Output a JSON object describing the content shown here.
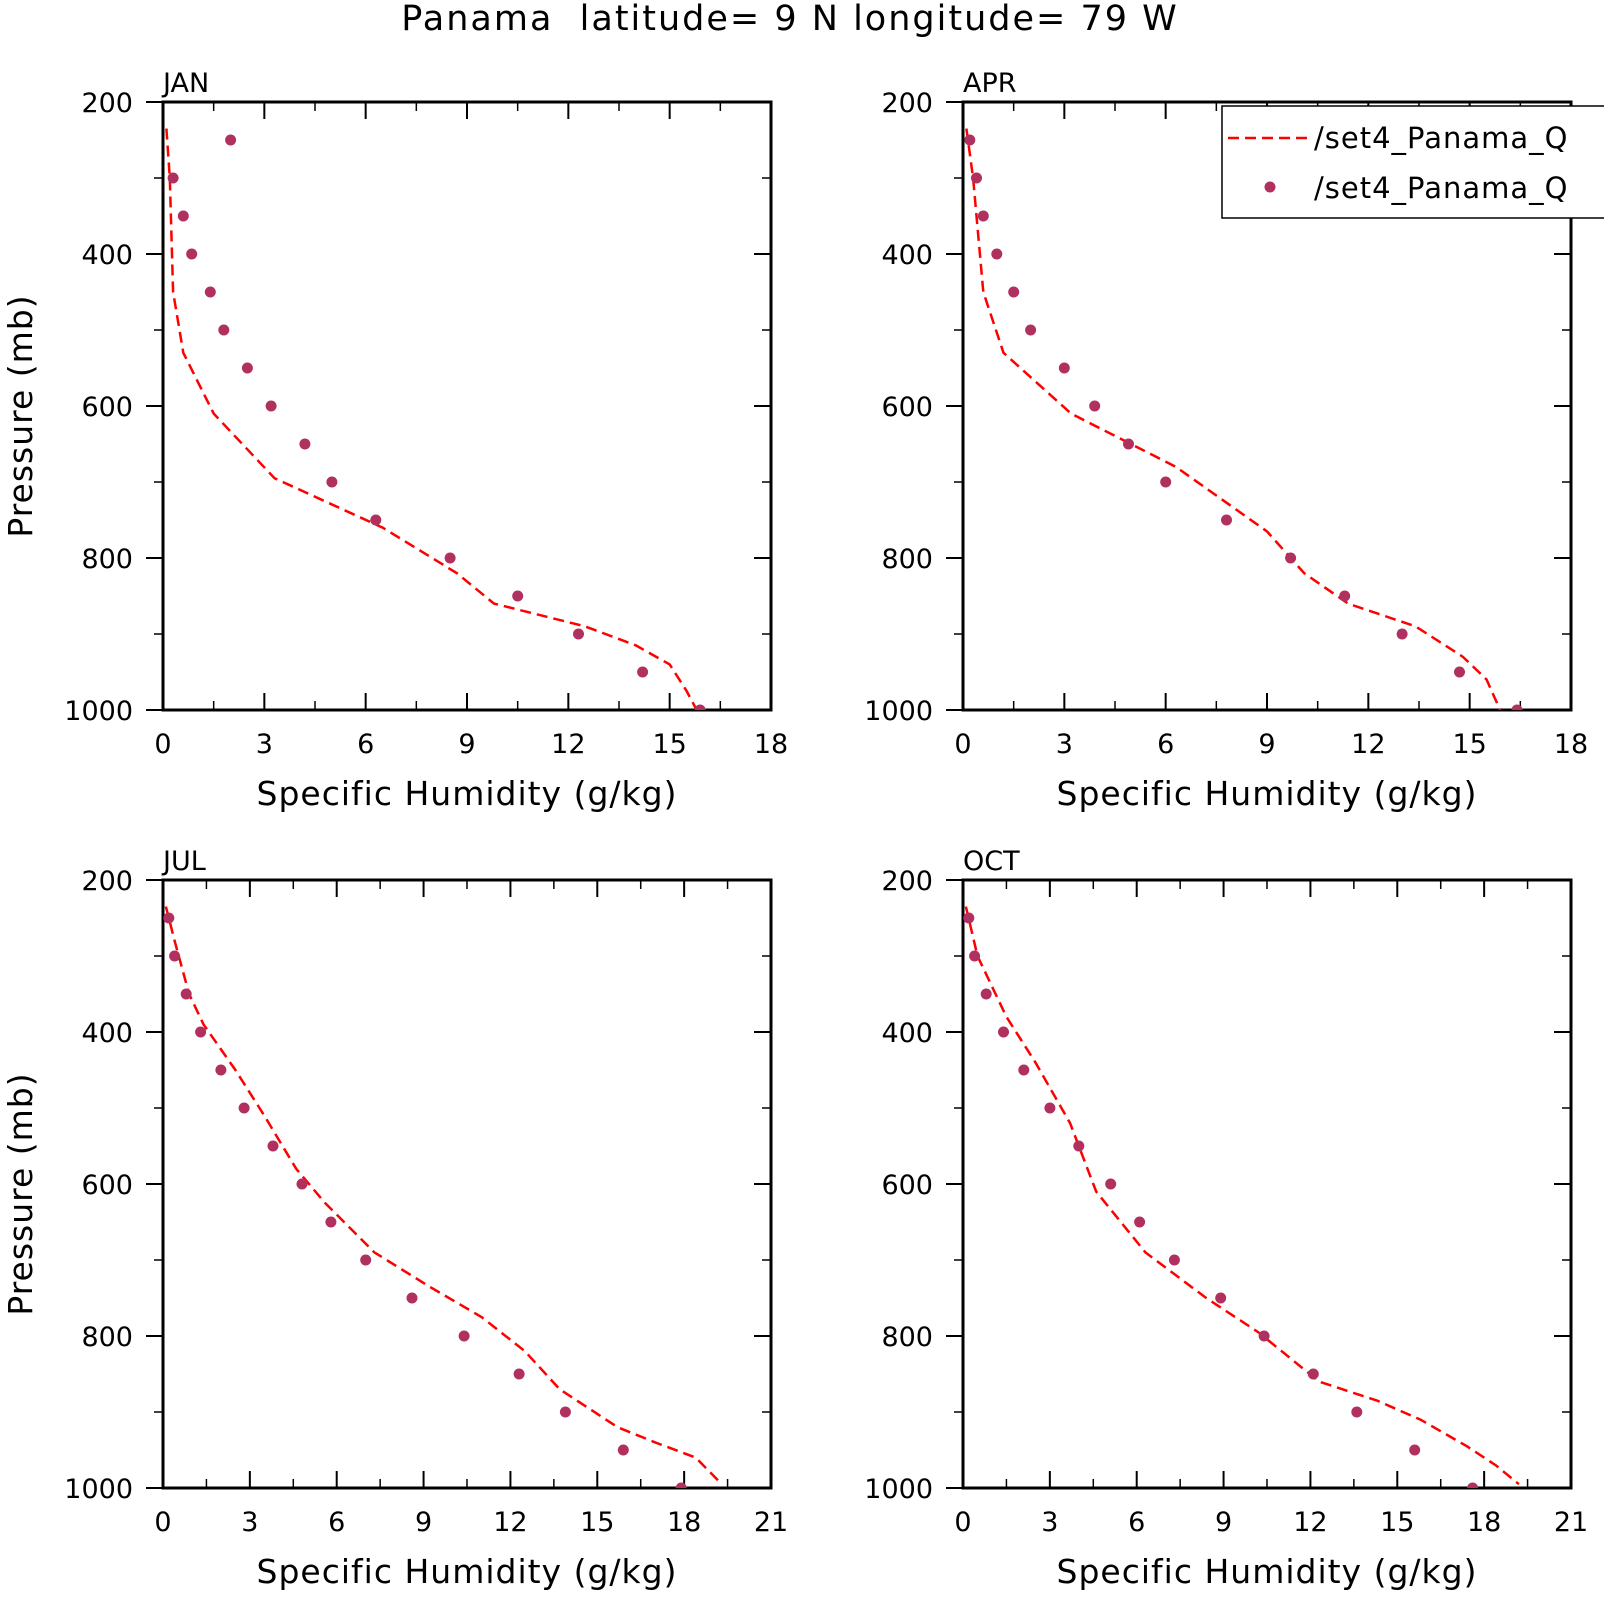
{
  "figure_title": "Panama  latitude= 9 N longitude= 79 W",
  "legend": {
    "entries": [
      {
        "label": "/set4_Panama_Q",
        "style": "dashed-line",
        "color": "#ff0000"
      },
      {
        "label": "/set4_Panama_Q",
        "style": "dots",
        "color": "#b03060"
      }
    ]
  },
  "colors": {
    "model_line": "#ff0000",
    "obs_dots": "#b03060",
    "axes": "#000000"
  },
  "chart_data": [
    {
      "type": "line",
      "panel_label": "JAN",
      "xlabel": "Specific Humidity (g/kg)",
      "ylabel": "Pressure (mb)",
      "xlim": [
        0,
        18
      ],
      "ylim": [
        1000,
        200
      ],
      "y_inverted": true,
      "x_ticks": [
        0,
        3,
        6,
        9,
        12,
        15,
        18
      ],
      "y_ticks": [
        200,
        400,
        600,
        800,
        1000
      ],
      "series": [
        {
          "style": "dashed-line",
          "color": "#ff0000",
          "points": [
            [
              0.1,
              235
            ],
            [
              0.2,
              300
            ],
            [
              0.3,
              450
            ],
            [
              0.6,
              530
            ],
            [
              1.5,
              610
            ],
            [
              3.3,
              695
            ],
            [
              6.5,
              760
            ],
            [
              8.7,
              820
            ],
            [
              9.8,
              860
            ],
            [
              12.5,
              890
            ],
            [
              14.0,
              915
            ],
            [
              15.0,
              940
            ],
            [
              15.5,
              975
            ],
            [
              15.8,
              1000
            ]
          ]
        },
        {
          "style": "dots",
          "color": "#b03060",
          "points": [
            [
              2.0,
              250
            ],
            [
              0.3,
              300
            ],
            [
              0.6,
              350
            ],
            [
              0.85,
              400
            ],
            [
              1.4,
              450
            ],
            [
              1.8,
              500
            ],
            [
              2.5,
              550
            ],
            [
              3.2,
              600
            ],
            [
              4.2,
              650
            ],
            [
              5.0,
              700
            ],
            [
              6.3,
              750
            ],
            [
              8.5,
              800
            ],
            [
              10.5,
              850
            ],
            [
              12.3,
              900
            ],
            [
              14.2,
              950
            ],
            [
              15.9,
              1000
            ]
          ]
        }
      ]
    },
    {
      "type": "line",
      "panel_label": "APR",
      "xlabel": "Specific Humidity (g/kg)",
      "ylabel": "",
      "xlim": [
        0,
        18
      ],
      "ylim": [
        1000,
        200
      ],
      "y_inverted": true,
      "x_ticks": [
        0,
        3,
        6,
        9,
        12,
        15,
        18
      ],
      "y_ticks": [
        200,
        400,
        600,
        800,
        1000
      ],
      "series": [
        {
          "style": "dashed-line",
          "color": "#ff0000",
          "points": [
            [
              0.1,
              235
            ],
            [
              0.3,
              300
            ],
            [
              0.6,
              450
            ],
            [
              1.2,
              530
            ],
            [
              3.2,
              610
            ],
            [
              6.3,
              680
            ],
            [
              9.0,
              765
            ],
            [
              10.1,
              820
            ],
            [
              11.4,
              860
            ],
            [
              13.4,
              890
            ],
            [
              14.8,
              930
            ],
            [
              15.5,
              960
            ],
            [
              15.9,
              1000
            ]
          ]
        },
        {
          "style": "dots",
          "color": "#b03060",
          "points": [
            [
              0.2,
              250
            ],
            [
              0.4,
              300
            ],
            [
              0.6,
              350
            ],
            [
              1.0,
              400
            ],
            [
              1.5,
              450
            ],
            [
              2.0,
              500
            ],
            [
              3.0,
              550
            ],
            [
              3.9,
              600
            ],
            [
              4.9,
              650
            ],
            [
              6.0,
              700
            ],
            [
              7.8,
              750
            ],
            [
              9.7,
              800
            ],
            [
              11.3,
              850
            ],
            [
              13.0,
              900
            ],
            [
              14.7,
              950
            ],
            [
              16.4,
              1000
            ]
          ]
        }
      ]
    },
    {
      "type": "line",
      "panel_label": "JUL",
      "xlabel": "Specific Humidity (g/kg)",
      "ylabel": "Pressure (mb)",
      "xlim": [
        0,
        21
      ],
      "ylim": [
        1000,
        200
      ],
      "y_inverted": true,
      "x_ticks": [
        0,
        3,
        6,
        9,
        12,
        15,
        18,
        21
      ],
      "y_ticks": [
        200,
        400,
        600,
        800,
        1000
      ],
      "series": [
        {
          "style": "dashed-line",
          "color": "#ff0000",
          "points": [
            [
              0.1,
              235
            ],
            [
              0.4,
              280
            ],
            [
              0.9,
              350
            ],
            [
              1.4,
              390
            ],
            [
              2.5,
              450
            ],
            [
              3.5,
              510
            ],
            [
              4.6,
              580
            ],
            [
              5.6,
              625
            ],
            [
              7.3,
              690
            ],
            [
              9.2,
              735
            ],
            [
              11.0,
              775
            ],
            [
              12.5,
              820
            ],
            [
              13.7,
              870
            ],
            [
              15.7,
              920
            ],
            [
              17.0,
              940
            ],
            [
              18.4,
              960
            ],
            [
              19.3,
              995
            ]
          ]
        },
        {
          "style": "dots",
          "color": "#b03060",
          "points": [
            [
              0.2,
              250
            ],
            [
              0.4,
              300
            ],
            [
              0.8,
              350
            ],
            [
              1.3,
              400
            ],
            [
              2.0,
              450
            ],
            [
              2.8,
              500
            ],
            [
              3.8,
              550
            ],
            [
              4.8,
              600
            ],
            [
              5.8,
              650
            ],
            [
              7.0,
              700
            ],
            [
              8.6,
              750
            ],
            [
              10.4,
              800
            ],
            [
              12.3,
              850
            ],
            [
              13.9,
              900
            ],
            [
              15.9,
              950
            ],
            [
              17.9,
              1000
            ]
          ]
        }
      ]
    },
    {
      "type": "line",
      "panel_label": "OCT",
      "xlabel": "Specific Humidity (g/kg)",
      "ylabel": "",
      "xlim": [
        0,
        21
      ],
      "ylim": [
        1000,
        200
      ],
      "y_inverted": true,
      "x_ticks": [
        0,
        3,
        6,
        9,
        12,
        15,
        18,
        21
      ],
      "y_ticks": [
        200,
        400,
        600,
        800,
        1000
      ],
      "series": [
        {
          "style": "dashed-line",
          "color": "#ff0000",
          "points": [
            [
              0.1,
              235
            ],
            [
              0.5,
              300
            ],
            [
              1.5,
              380
            ],
            [
              2.5,
              440
            ],
            [
              3.7,
              520
            ],
            [
              4.6,
              610
            ],
            [
              6.3,
              690
            ],
            [
              8.4,
              750
            ],
            [
              10.2,
              795
            ],
            [
              12.3,
              860
            ],
            [
              14.3,
              885
            ],
            [
              15.8,
              910
            ],
            [
              17.4,
              945
            ],
            [
              18.4,
              970
            ],
            [
              19.2,
              995
            ]
          ]
        },
        {
          "style": "dots",
          "color": "#b03060",
          "points": [
            [
              0.2,
              250
            ],
            [
              0.4,
              300
            ],
            [
              0.8,
              350
            ],
            [
              1.4,
              400
            ],
            [
              2.1,
              450
            ],
            [
              3.0,
              500
            ],
            [
              4.0,
              550
            ],
            [
              5.1,
              600
            ],
            [
              6.1,
              650
            ],
            [
              7.3,
              700
            ],
            [
              8.9,
              750
            ],
            [
              10.4,
              800
            ],
            [
              12.1,
              850
            ],
            [
              13.6,
              900
            ],
            [
              15.6,
              950
            ],
            [
              17.6,
              1000
            ]
          ]
        }
      ]
    }
  ]
}
